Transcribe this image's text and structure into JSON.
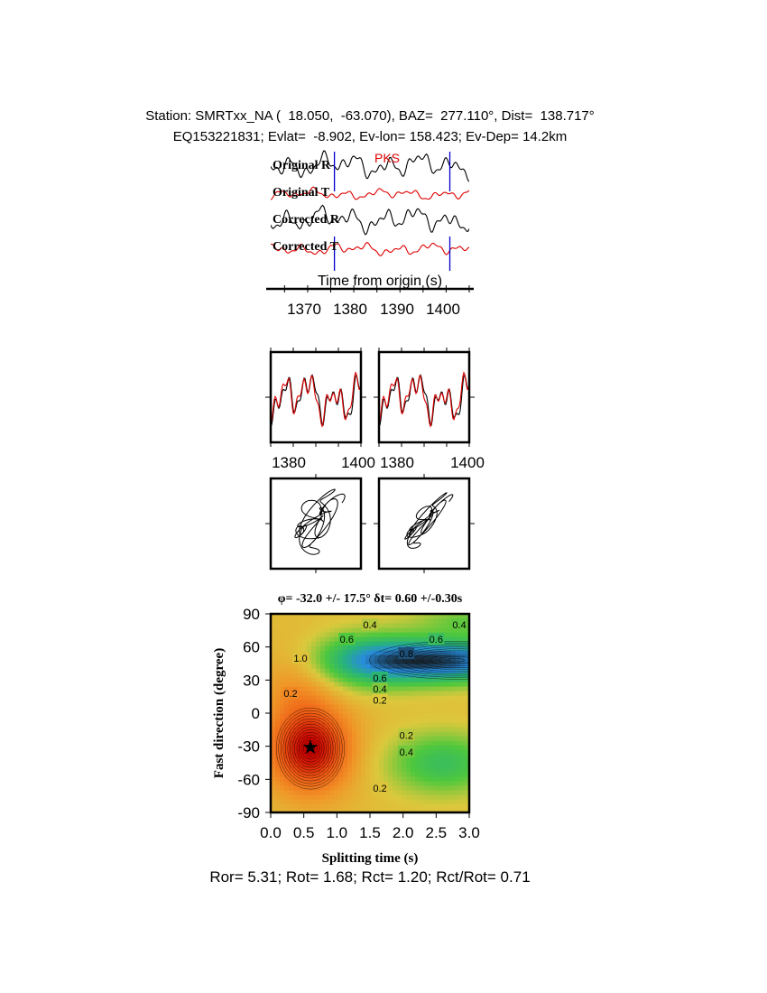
{
  "header": {
    "line1": "Station: SMRTxx_NA (  18.050,  -63.070), BAZ=  277.110°, Dist=  138.717°",
    "line2": "EQ153221831; Evlat=  -8.902, Ev-lon= 158.423; Ev-Dep= 14.2km"
  },
  "footer": "Ror= 5.31; Rot= 1.68; Rct= 1.20; Rct/Rot= 0.71",
  "colors": {
    "radial": "#000000",
    "transverse": "#dd0000",
    "marker": "#0000cc",
    "phase": "#dd0000"
  },
  "chart_data": [
    {
      "type": "line",
      "panel": "waveforms",
      "phase_label": "PKS",
      "series": [
        {
          "name": "Original R",
          "color": "#000000"
        },
        {
          "name": "Original T",
          "color": "#dd0000"
        },
        {
          "name": "Corrected R",
          "color": "#000000"
        },
        {
          "name": "Corrected T",
          "color": "#dd0000"
        }
      ],
      "xlabel": "Time from origin (s)",
      "x_ticks": [
        "1370",
        "1380",
        "1390",
        "1400"
      ],
      "xlim": [
        1362,
        1405
      ],
      "window_markers": [
        1375.8,
        1400.8
      ]
    },
    {
      "type": "line",
      "panel": "waveform-overlay",
      "x_ticks": [
        "1380",
        "1400"
      ],
      "xlim": [
        1375.8,
        1400.8
      ],
      "panels": [
        "uncorrected",
        "corrected"
      ]
    },
    {
      "type": "scatter",
      "panel": "particle-motion",
      "panels": [
        "uncorrected",
        "corrected"
      ]
    },
    {
      "type": "heatmap",
      "panel": "energy-grid",
      "title": "φ= -32.0 +/- 17.5° δt= 0.60 +/-0.30s",
      "xlabel": "Splitting time (s)",
      "ylabel": "Fast direction (degree)",
      "xlim": [
        0.0,
        3.0
      ],
      "ylim": [
        -90,
        90
      ],
      "x_ticks": [
        "0.0",
        "0.5",
        "1.0",
        "1.5",
        "2.0",
        "2.5",
        "3.0"
      ],
      "y_ticks": [
        "90",
        "60",
        "30",
        "0",
        "-30",
        "-60",
        "-90"
      ],
      "best_fit": {
        "dt": 0.6,
        "phi": -32.0
      },
      "contour_labels": [
        {
          "text": "0.4",
          "x": 1.5,
          "y": 80
        },
        {
          "text": "0.4",
          "x": 2.85,
          "y": 80
        },
        {
          "text": "0.6",
          "x": 1.15,
          "y": 67
        },
        {
          "text": "0.6",
          "x": 2.5,
          "y": 67
        },
        {
          "text": "0.8",
          "x": 2.05,
          "y": 54
        },
        {
          "text": "1.0",
          "x": 0.45,
          "y": 50
        },
        {
          "text": "0.6",
          "x": 1.65,
          "y": 32
        },
        {
          "text": "0.4",
          "x": 1.65,
          "y": 22
        },
        {
          "text": "0.2",
          "x": 1.65,
          "y": 12
        },
        {
          "text": "0.2",
          "x": 0.3,
          "y": 18
        },
        {
          "text": "0.2",
          "x": 2.05,
          "y": -20
        },
        {
          "text": "0.4",
          "x": 2.05,
          "y": -35
        },
        {
          "text": "0.2",
          "x": 1.65,
          "y": -68
        }
      ]
    }
  ]
}
